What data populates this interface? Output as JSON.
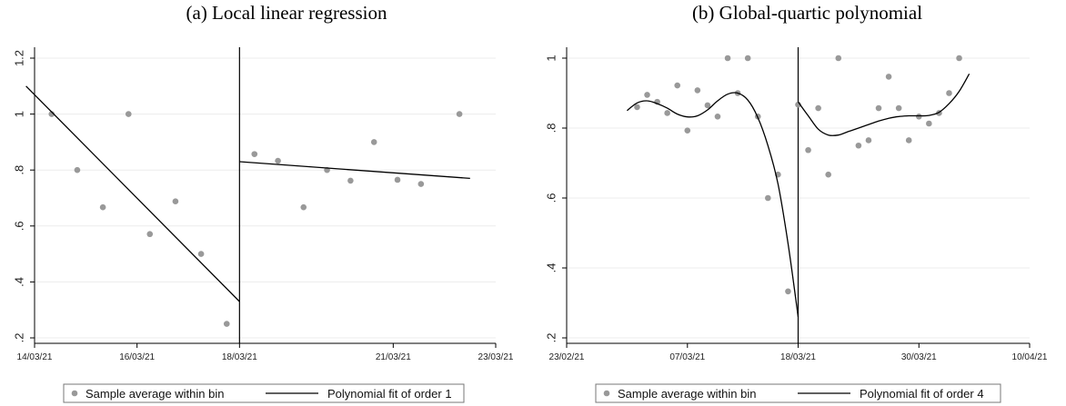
{
  "chart_data": [
    {
      "type": "scatter",
      "title": "(a) Local linear regression",
      "xlabel": "",
      "ylabel": "",
      "ylim": [
        0.2,
        1.2
      ],
      "xlim": [
        "2021-03-14",
        "2021-03-23"
      ],
      "x_ticks": [
        "14/03/21",
        "16/03/21",
        "18/03/21",
        "21/03/21",
        "23/03/21"
      ],
      "y_ticks": [
        ".2",
        ".4",
        ".6",
        ".8",
        "1",
        "1.2"
      ],
      "cutoff": "2021-03-18",
      "grid": true,
      "legend_position": "bottom",
      "series": [
        {
          "name": "Sample average within bin",
          "kind": "scatter",
          "color": "#999999",
          "points": [
            {
              "x": "2021-03-14 08:00",
              "y": 1.0
            },
            {
              "x": "2021-03-14 20:00",
              "y": 0.8
            },
            {
              "x": "2021-03-15 08:00",
              "y": 0.667
            },
            {
              "x": "2021-03-15 20:00",
              "y": 1.0
            },
            {
              "x": "2021-03-16 06:00",
              "y": 0.571
            },
            {
              "x": "2021-03-16 18:00",
              "y": 0.688
            },
            {
              "x": "2021-03-17 06:00",
              "y": 0.5
            },
            {
              "x": "2021-03-17 18:00",
              "y": 0.25
            },
            {
              "x": "2021-03-18 07:00",
              "y": 0.857
            },
            {
              "x": "2021-03-18 18:00",
              "y": 0.833
            },
            {
              "x": "2021-03-19 06:00",
              "y": 0.667
            },
            {
              "x": "2021-03-19 17:00",
              "y": 0.8
            },
            {
              "x": "2021-03-20 04:00",
              "y": 0.762
            },
            {
              "x": "2021-03-20 15:00",
              "y": 0.9
            },
            {
              "x": "2021-03-21 02:00",
              "y": 0.765
            },
            {
              "x": "2021-03-21 13:00",
              "y": 0.75
            },
            {
              "x": "2021-03-22 07:00",
              "y": 1.0
            }
          ]
        },
        {
          "name": "Polynomial fit of order 1",
          "kind": "line",
          "color": "#000000",
          "segments": [
            [
              {
                "x": "2021-03-13 20:00",
                "y": 1.1
              },
              {
                "x": "2021-03-18 00:00",
                "y": 0.33
              }
            ],
            [
              {
                "x": "2021-03-18 00:00",
                "y": 0.83
              },
              {
                "x": "2021-03-22 12:00",
                "y": 0.77
              }
            ]
          ]
        }
      ]
    },
    {
      "type": "scatter",
      "title": "(b) Global-quartic polynomial",
      "xlabel": "",
      "ylabel": "",
      "ylim": [
        0.2,
        1.0
      ],
      "xlim": [
        "2021-02-23",
        "2021-04-10"
      ],
      "x_ticks": [
        "23/02/21",
        "07/03/21",
        "18/03/21",
        "30/03/21",
        "10/04/21"
      ],
      "y_ticks": [
        ".2",
        ".4",
        ".6",
        ".8",
        "1"
      ],
      "cutoff": "2021-03-18",
      "grid": true,
      "legend_position": "bottom",
      "series": [
        {
          "name": "Sample average within bin",
          "kind": "scatter",
          "color": "#999999",
          "points": [
            {
              "x": "2021-03-02",
              "y": 0.86
            },
            {
              "x": "2021-03-03",
              "y": 0.895
            },
            {
              "x": "2021-03-04",
              "y": 0.875
            },
            {
              "x": "2021-03-05",
              "y": 0.843
            },
            {
              "x": "2021-03-06",
              "y": 0.922
            },
            {
              "x": "2021-03-07",
              "y": 0.793
            },
            {
              "x": "2021-03-08",
              "y": 0.908
            },
            {
              "x": "2021-03-09",
              "y": 0.865
            },
            {
              "x": "2021-03-10",
              "y": 0.833
            },
            {
              "x": "2021-03-11",
              "y": 1.0
            },
            {
              "x": "2021-03-12",
              "y": 0.9
            },
            {
              "x": "2021-03-13",
              "y": 1.0
            },
            {
              "x": "2021-03-14",
              "y": 0.833
            },
            {
              "x": "2021-03-15",
              "y": 0.6
            },
            {
              "x": "2021-03-16",
              "y": 0.667
            },
            {
              "x": "2021-03-17",
              "y": 0.333
            },
            {
              "x": "2021-03-18",
              "y": 0.867
            },
            {
              "x": "2021-03-19",
              "y": 0.737
            },
            {
              "x": "2021-03-20",
              "y": 0.857
            },
            {
              "x": "2021-03-21",
              "y": 0.667
            },
            {
              "x": "2021-03-22",
              "y": 1.0
            },
            {
              "x": "2021-03-24",
              "y": 0.75
            },
            {
              "x": "2021-03-25",
              "y": 0.765
            },
            {
              "x": "2021-03-26",
              "y": 0.857
            },
            {
              "x": "2021-03-27",
              "y": 0.947
            },
            {
              "x": "2021-03-28",
              "y": 0.857
            },
            {
              "x": "2021-03-29",
              "y": 0.765
            },
            {
              "x": "2021-03-30",
              "y": 0.833
            },
            {
              "x": "2021-03-31",
              "y": 0.813
            },
            {
              "x": "2021-04-01",
              "y": 0.843
            },
            {
              "x": "2021-04-02",
              "y": 0.9
            },
            {
              "x": "2021-04-03",
              "y": 1.0
            }
          ]
        },
        {
          "name": "Polynomial fit of order 4",
          "kind": "line",
          "color": "#000000",
          "segments": [
            [
              {
                "x": "2021-03-01",
                "y": 0.85
              },
              {
                "x": "2021-03-02",
                "y": 0.872
              },
              {
                "x": "2021-03-03",
                "y": 0.878
              },
              {
                "x": "2021-03-04",
                "y": 0.87
              },
              {
                "x": "2021-03-05",
                "y": 0.857
              },
              {
                "x": "2021-03-06",
                "y": 0.84
              },
              {
                "x": "2021-03-07",
                "y": 0.832
              },
              {
                "x": "2021-03-08",
                "y": 0.835
              },
              {
                "x": "2021-03-09",
                "y": 0.852
              },
              {
                "x": "2021-03-10",
                "y": 0.878
              },
              {
                "x": "2021-03-11",
                "y": 0.897
              },
              {
                "x": "2021-03-12",
                "y": 0.9
              },
              {
                "x": "2021-03-13",
                "y": 0.88
              },
              {
                "x": "2021-03-14",
                "y": 0.83
              },
              {
                "x": "2021-03-15",
                "y": 0.75
              },
              {
                "x": "2021-03-16",
                "y": 0.64
              },
              {
                "x": "2021-03-17",
                "y": 0.47
              },
              {
                "x": "2021-03-18",
                "y": 0.26
              }
            ],
            [
              {
                "x": "2021-03-18",
                "y": 0.875
              },
              {
                "x": "2021-03-19",
                "y": 0.835
              },
              {
                "x": "2021-03-20",
                "y": 0.797
              },
              {
                "x": "2021-03-21",
                "y": 0.78
              },
              {
                "x": "2021-03-22",
                "y": 0.78
              },
              {
                "x": "2021-03-23",
                "y": 0.79
              },
              {
                "x": "2021-03-24",
                "y": 0.8
              },
              {
                "x": "2021-03-25",
                "y": 0.81
              },
              {
                "x": "2021-03-26",
                "y": 0.82
              },
              {
                "x": "2021-03-27",
                "y": 0.828
              },
              {
                "x": "2021-03-28",
                "y": 0.833
              },
              {
                "x": "2021-03-29",
                "y": 0.835
              },
              {
                "x": "2021-03-30",
                "y": 0.835
              },
              {
                "x": "2021-03-31",
                "y": 0.836
              },
              {
                "x": "2021-04-01",
                "y": 0.845
              },
              {
                "x": "2021-04-02",
                "y": 0.87
              },
              {
                "x": "2021-04-03",
                "y": 0.905
              },
              {
                "x": "2021-04-04",
                "y": 0.955
              }
            ]
          ]
        }
      ]
    }
  ]
}
